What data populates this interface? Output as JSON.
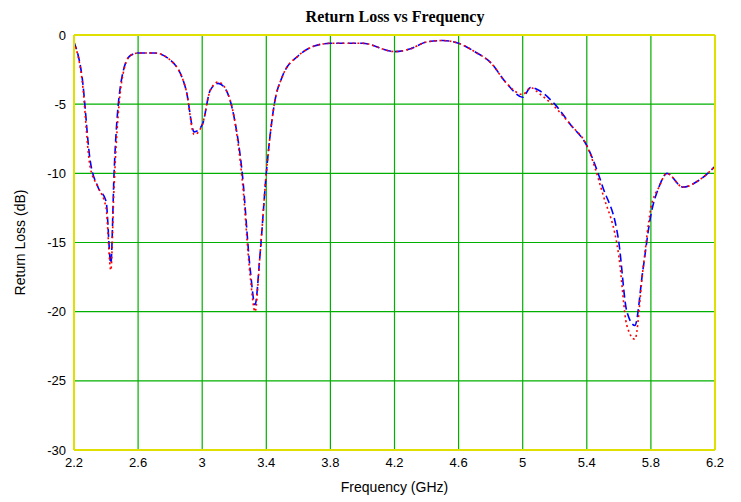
{
  "chart_data": {
    "type": "line",
    "title": "Return Loss vs Frequency",
    "x_label": "Frequency (GHz)",
    "y_label": "Return Loss (dB)",
    "x": [
      2.2,
      2.25,
      2.3,
      2.35,
      2.4,
      2.43,
      2.45,
      2.5,
      2.55,
      2.6,
      2.7,
      2.8,
      2.9,
      2.95,
      3.0,
      3.05,
      3.1,
      3.15,
      3.2,
      3.25,
      3.3,
      3.33,
      3.36,
      3.4,
      3.45,
      3.5,
      3.6,
      3.7,
      3.8,
      4.0,
      4.2,
      4.3,
      4.4,
      4.5,
      4.6,
      4.7,
      4.8,
      4.9,
      5.0,
      5.05,
      5.1,
      5.2,
      5.3,
      5.4,
      5.5,
      5.6,
      5.65,
      5.7,
      5.75,
      5.8,
      5.85,
      5.9,
      6.0,
      6.1,
      6.2
    ],
    "series": [
      {
        "color": "#0000ff",
        "line_style": "dashed",
        "values": [
          -0.5,
          -3,
          -9,
          -11,
          -12,
          -16.5,
          -10,
          -3,
          -1.5,
          -1.3,
          -1.3,
          -1.8,
          -4,
          -7,
          -6.5,
          -4,
          -3.5,
          -4,
          -6,
          -10,
          -17,
          -19.5,
          -16,
          -10,
          -5,
          -3,
          -1.5,
          -0.8,
          -0.6,
          -0.6,
          -1.2,
          -1,
          -0.5,
          -0.4,
          -0.6,
          -1.2,
          -2,
          -3.5,
          -4.5,
          -3.8,
          -4,
          -5,
          -6.5,
          -8,
          -11,
          -15,
          -20,
          -21,
          -17,
          -13,
          -11,
          -10,
          -11,
          -10.5,
          -9.5
        ]
      },
      {
        "color": "#ff0000",
        "line_style": "dotted",
        "values": [
          -0.5,
          -3.2,
          -9.5,
          -11,
          -12.5,
          -17,
          -11,
          -3.2,
          -1.5,
          -1.3,
          -1.3,
          -1.8,
          -4,
          -7.2,
          -6.5,
          -4,
          -3.4,
          -4,
          -6,
          -10.5,
          -17.5,
          -20,
          -16,
          -10,
          -5,
          -3,
          -1.5,
          -0.8,
          -0.6,
          -0.6,
          -1.2,
          -1,
          -0.5,
          -0.4,
          -0.6,
          -1.2,
          -2,
          -3.5,
          -4.3,
          -3.8,
          -4.2,
          -5.2,
          -6.5,
          -8,
          -11.5,
          -16,
          -21,
          -22,
          -17,
          -12.5,
          -11,
          -10,
          -11,
          -10.5,
          -9.5
        ]
      }
    ],
    "xlim": [
      2.2,
      6.2
    ],
    "xticks": [
      2.2,
      2.6,
      3,
      3.4,
      3.8,
      4.2,
      4.6,
      5,
      5.4,
      5.8,
      6.2
    ],
    "ylim": [
      -30,
      0
    ],
    "yticks": [
      0,
      -5,
      -10,
      -15,
      -20,
      -25,
      -30
    ],
    "grid": true
  }
}
